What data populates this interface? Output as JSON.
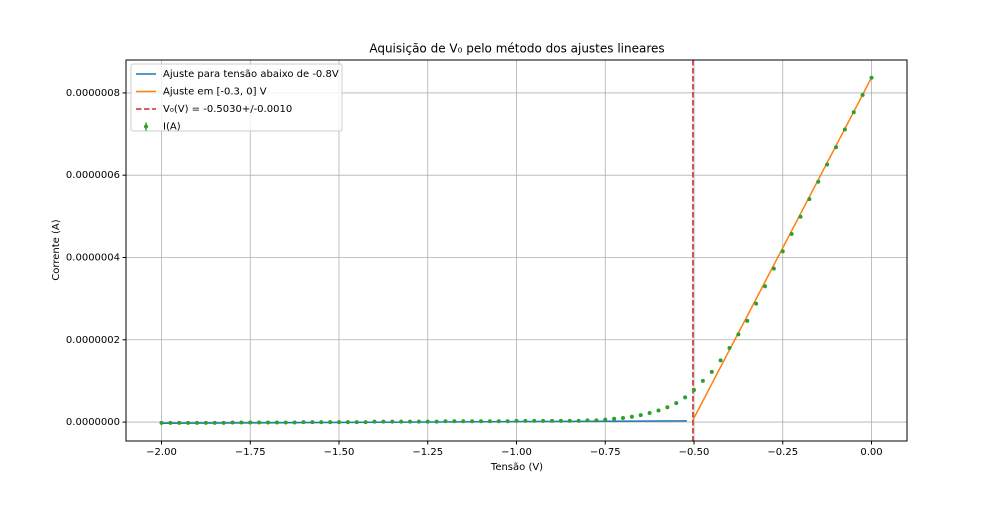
{
  "chart_data": {
    "type": "line",
    "title": "Aquisição de V₀ pelo método dos ajustes lineares",
    "x_label": "Tensão (V)",
    "y_label": "Corrente (A)",
    "xlim": [
      -2.1,
      0.1
    ],
    "ylim": [
      -4.6e-08,
      8.8e-07
    ],
    "xticks": [
      {
        "value": -2,
        "label": "−2.00"
      },
      {
        "value": -1.75,
        "label": "−1.75"
      },
      {
        "value": -1.5,
        "label": "−1.50"
      },
      {
        "value": -1.25,
        "label": "−1.25"
      },
      {
        "value": -1,
        "label": "−1.00"
      },
      {
        "value": -0.75,
        "label": "−0.75"
      },
      {
        "value": -0.5,
        "label": "−0.50"
      },
      {
        "value": -0.25,
        "label": "−0.25"
      },
      {
        "value": 0,
        "label": "0.00"
      }
    ],
    "yticks": [
      {
        "value": 0,
        "label": "0.0000000"
      },
      {
        "value": 2e-07,
        "label": "0.0000002"
      },
      {
        "value": 4e-07,
        "label": "0.0000004"
      },
      {
        "value": 6e-07,
        "label": "0.0000006"
      },
      {
        "value": 8e-07,
        "label": "0.0000008"
      }
    ],
    "grid": true,
    "legend": "upper left",
    "series": [
      {
        "name": "Ajuste para tensão abaixo de -0.8V",
        "color": "#1f77b4",
        "style": "line",
        "x": [
          -2,
          -0.52
        ],
        "values": [
          -3e-09,
          3e-09
        ]
      },
      {
        "name": "Ajuste em [-0.3, 0] V",
        "color": "#ff7f0e",
        "style": "line",
        "x": [
          -0.503,
          0
        ],
        "values": [
          5e-09,
          8.37e-07
        ]
      },
      {
        "name": "V₀(V) = -0.5030+/-0.0010",
        "color": "#d62728",
        "style": "vline",
        "x": -0.503
      },
      {
        "name": "I(A)",
        "color": "#2ca02c",
        "style": "errorbar",
        "x": [
          -2,
          -1.975,
          -1.95,
          -1.925,
          -1.9,
          -1.875,
          -1.85,
          -1.825,
          -1.8,
          -1.775,
          -1.75,
          -1.725,
          -1.7,
          -1.675,
          -1.65,
          -1.625,
          -1.6,
          -1.575,
          -1.55,
          -1.525,
          -1.5,
          -1.475,
          -1.45,
          -1.425,
          -1.4,
          -1.375,
          -1.35,
          -1.325,
          -1.3,
          -1.275,
          -1.25,
          -1.225,
          -1.2,
          -1.175,
          -1.15,
          -1.125,
          -1.1,
          -1.075,
          -1.05,
          -1.025,
          -1,
          -0.975,
          -0.95,
          -0.925,
          -0.9,
          -0.875,
          -0.85,
          -0.825,
          -0.8,
          -0.775,
          -0.75,
          -0.725,
          -0.7,
          -0.675,
          -0.65,
          -0.625,
          -0.6,
          -0.575,
          -0.55,
          -0.525,
          -0.5,
          -0.475,
          -0.45,
          -0.425,
          -0.4,
          -0.375,
          -0.35,
          -0.325,
          -0.3,
          -0.275,
          -0.25,
          -0.225,
          -0.2,
          -0.175,
          -0.15,
          -0.125,
          -0.1,
          -0.075,
          -0.05,
          -0.025,
          0
        ],
        "values": [
          -2e-09,
          -2e-09,
          -2e-09,
          -2e-09,
          -2e-09,
          -2e-09,
          -2e-09,
          -2e-09,
          -1e-09,
          -1e-09,
          -1e-09,
          -1e-09,
          -1e-09,
          -1e-09,
          -1e-09,
          -1e-09,
          0,
          0,
          0,
          0,
          0,
          0,
          0,
          0,
          1e-09,
          1e-09,
          1e-09,
          1e-09,
          1e-09,
          1e-09,
          1e-09,
          1e-09,
          2e-09,
          2e-09,
          2e-09,
          2e-09,
          2e-09,
          2e-09,
          2e-09,
          2e-09,
          3e-09,
          3e-09,
          3e-09,
          3e-09,
          3e-09,
          3e-09,
          3e-09,
          3e-09,
          4e-09,
          4e-09,
          6e-09,
          8e-09,
          1e-08,
          1.3e-08,
          1.7e-08,
          2.2e-08,
          2.8e-08,
          3.6e-08,
          4.6e-08,
          6e-08,
          7.8e-08,
          1e-07,
          1.22e-07,
          1.5e-07,
          1.8e-07,
          2.13e-07,
          2.46e-07,
          2.88e-07,
          3.3e-07,
          3.73e-07,
          4.15e-07,
          4.57e-07,
          4.99e-07,
          5.42e-07,
          5.84e-07,
          6.26e-07,
          6.68e-07,
          7.11e-07,
          7.53e-07,
          7.95e-07,
          8.37e-07
        ]
      }
    ]
  }
}
